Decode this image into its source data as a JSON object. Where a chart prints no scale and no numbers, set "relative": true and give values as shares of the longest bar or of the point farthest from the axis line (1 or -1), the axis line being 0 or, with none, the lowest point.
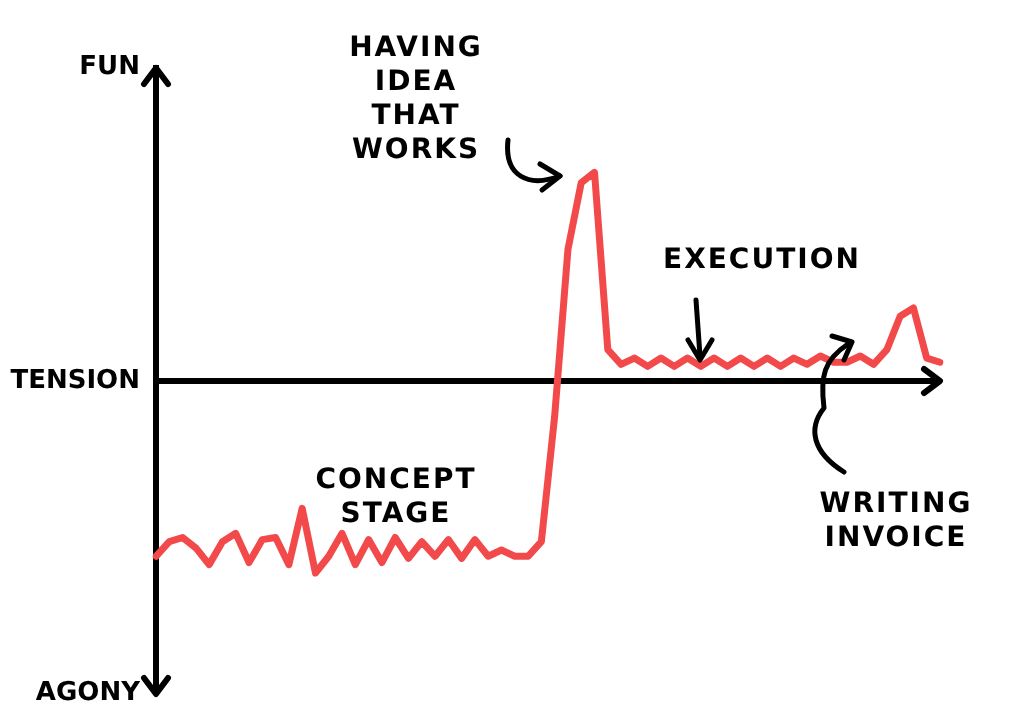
{
  "chart_data": {
    "type": "line",
    "relative": true,
    "categories": [
      null,
      null,
      null,
      null,
      null,
      null,
      null,
      null,
      null,
      null,
      null,
      null,
      null,
      null,
      null,
      null,
      null,
      null,
      null,
      null,
      null,
      null,
      null,
      null,
      null,
      null,
      null,
      null,
      null,
      null,
      null,
      null,
      null,
      null,
      null,
      null,
      null,
      null,
      null,
      null,
      null,
      null,
      null,
      null,
      null,
      null,
      null,
      null,
      null,
      null,
      null,
      null,
      null,
      null,
      null,
      null,
      null,
      null,
      null,
      null
    ],
    "series": [
      {
        "color": "#f24a4a",
        "values": [
          -0.84,
          -0.77,
          -0.75,
          -0.8,
          -0.88,
          -0.77,
          -0.73,
          -0.87,
          -0.76,
          -0.75,
          -0.88,
          -0.61,
          -0.92,
          -0.84,
          -0.73,
          -0.88,
          -0.76,
          -0.87,
          -0.75,
          -0.85,
          -0.77,
          -0.84,
          -0.76,
          -0.85,
          -0.76,
          -0.84,
          -0.81,
          -0.84,
          -0.84,
          -0.77,
          -0.17,
          0.63,
          0.95,
          1,
          0.15,
          0.08,
          0.11,
          0.07,
          0.11,
          0.07,
          0.11,
          0.07,
          0.11,
          0.07,
          0.11,
          0.07,
          0.11,
          0.07,
          0.11,
          0.08,
          0.12,
          0.09,
          0.09,
          0.12,
          0.08,
          0.15,
          0.31,
          0.35,
          0.11,
          0.09
        ]
      }
    ],
    "annotations": [
      "FUN",
      "TENSION",
      "AGONY",
      "HAVING IDEA THAT WORKS",
      "EXECUTION",
      "CONCEPT STAGE",
      "WRITING INVOICE"
    ],
    "legend": false,
    "marker": "none",
    "line_style": "solid"
  }
}
